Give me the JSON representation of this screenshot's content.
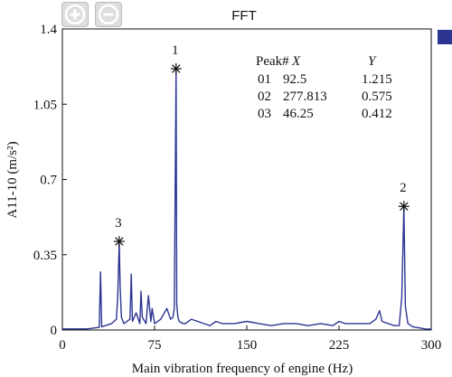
{
  "toolbar": {
    "zoom_in_icon": "plus-circle-icon",
    "zoom_out_icon": "minus-circle-icon"
  },
  "colors": {
    "series": "#2d3592",
    "axis": "#111111"
  },
  "chart_data": {
    "type": "line",
    "title": "FFT",
    "xlabel": "Main vibration frequency of engine (Hz)",
    "ylabel": "A11-10 (m/s²)",
    "xlim": [
      0,
      300
    ],
    "ylim": [
      0,
      1.4
    ],
    "xticks": [
      0,
      75,
      150,
      225,
      300
    ],
    "xtick_labels": [
      "0",
      "75",
      "150",
      "225",
      "300"
    ],
    "yticks": [
      0,
      0.35,
      0.7,
      1.05,
      1.4
    ],
    "ytick_labels": [
      "0",
      "0.35",
      "0.7",
      "1.05",
      "1.4"
    ],
    "grid": false,
    "legend": "right",
    "series": [
      {
        "x": [
          0,
          20,
          30,
          31,
          32,
          35,
          40,
          44,
          45,
          46.25,
          47,
          48,
          50,
          55,
          56,
          57,
          60,
          63,
          64,
          65,
          68,
          70,
          72,
          73,
          75,
          80,
          85,
          88,
          90,
          91,
          92.5,
          93,
          94,
          95,
          98,
          100,
          105,
          110,
          115,
          120,
          125,
          130,
          140,
          150,
          160,
          170,
          180,
          190,
          200,
          210,
          220,
          225,
          230,
          240,
          250,
          255,
          258,
          260,
          265,
          270,
          274,
          276,
          277.813,
          279,
          281,
          285,
          290,
          295,
          300
        ],
        "y": [
          0.005,
          0.005,
          0.012,
          0.27,
          0.015,
          0.02,
          0.03,
          0.05,
          0.15,
          0.412,
          0.2,
          0.06,
          0.03,
          0.05,
          0.26,
          0.04,
          0.08,
          0.03,
          0.18,
          0.06,
          0.03,
          0.16,
          0.04,
          0.1,
          0.03,
          0.05,
          0.1,
          0.05,
          0.06,
          0.1,
          1.215,
          0.12,
          0.06,
          0.04,
          0.03,
          0.03,
          0.05,
          0.04,
          0.03,
          0.02,
          0.04,
          0.03,
          0.03,
          0.04,
          0.03,
          0.02,
          0.03,
          0.03,
          0.02,
          0.03,
          0.02,
          0.04,
          0.03,
          0.03,
          0.03,
          0.05,
          0.09,
          0.04,
          0.03,
          0.02,
          0.02,
          0.15,
          0.575,
          0.11,
          0.03,
          0.015,
          0.01,
          0.005,
          0.004
        ]
      }
    ],
    "peaks": [
      {
        "label": "1",
        "x": 92.5,
        "y": 1.215
      },
      {
        "label": "2",
        "x": 277.813,
        "y": 0.575
      },
      {
        "label": "3",
        "x": 46.25,
        "y": 0.412
      }
    ],
    "peak_table": {
      "header_peak": "Peak#",
      "header_x": "X",
      "header_y": "Y",
      "rows": [
        {
          "id": "01",
          "x": "92.5",
          "y": "1.215"
        },
        {
          "id": "02",
          "x": "277.813",
          "y": "0.575"
        },
        {
          "id": "03",
          "x": "46.25",
          "y": "0.412"
        }
      ]
    }
  }
}
